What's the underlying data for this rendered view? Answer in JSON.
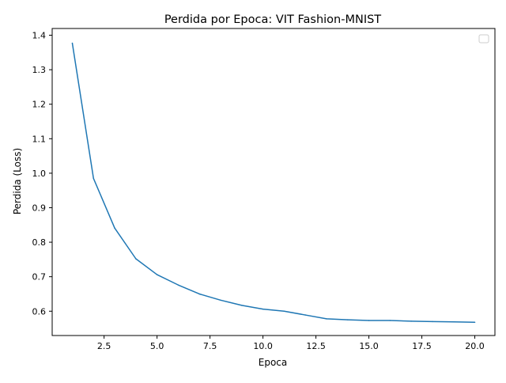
{
  "chart_data": {
    "type": "line",
    "title": "Perdida por Epoca: VIT Fashion-MNIST",
    "xlabel": "Epoca",
    "ylabel": "Perdida (Loss)",
    "xlim": [
      0.05,
      20.95
    ],
    "ylim": [
      0.5295,
      1.4195
    ],
    "x_ticks": [
      2.5,
      5.0,
      7.5,
      10.0,
      12.5,
      15.0,
      17.5,
      20.0
    ],
    "x_tick_labels": [
      "2.5",
      "5.0",
      "7.5",
      "10.0",
      "12.5",
      "15.0",
      "17.5",
      "20.0"
    ],
    "y_ticks": [
      0.6,
      0.7,
      0.8,
      0.9,
      1.0,
      1.1,
      1.2,
      1.3,
      1.4
    ],
    "y_tick_labels": [
      "0.6",
      "0.7",
      "0.8",
      "0.9",
      "1.0",
      "1.1",
      "1.2",
      "1.3",
      "1.4"
    ],
    "grid": false,
    "legend": "top-right, empty",
    "series": [
      {
        "color": "#1f77b4",
        "x": [
          1,
          2,
          3,
          4,
          5,
          6,
          7,
          8,
          9,
          10,
          11,
          12,
          13,
          14,
          15,
          16,
          17,
          18,
          19,
          20
        ],
        "y": [
          1.377,
          0.985,
          0.841,
          0.752,
          0.706,
          0.676,
          0.65,
          0.632,
          0.617,
          0.606,
          0.6,
          0.589,
          0.578,
          0.575,
          0.573,
          0.573,
          0.571,
          0.57,
          0.569,
          0.568
        ]
      }
    ]
  }
}
